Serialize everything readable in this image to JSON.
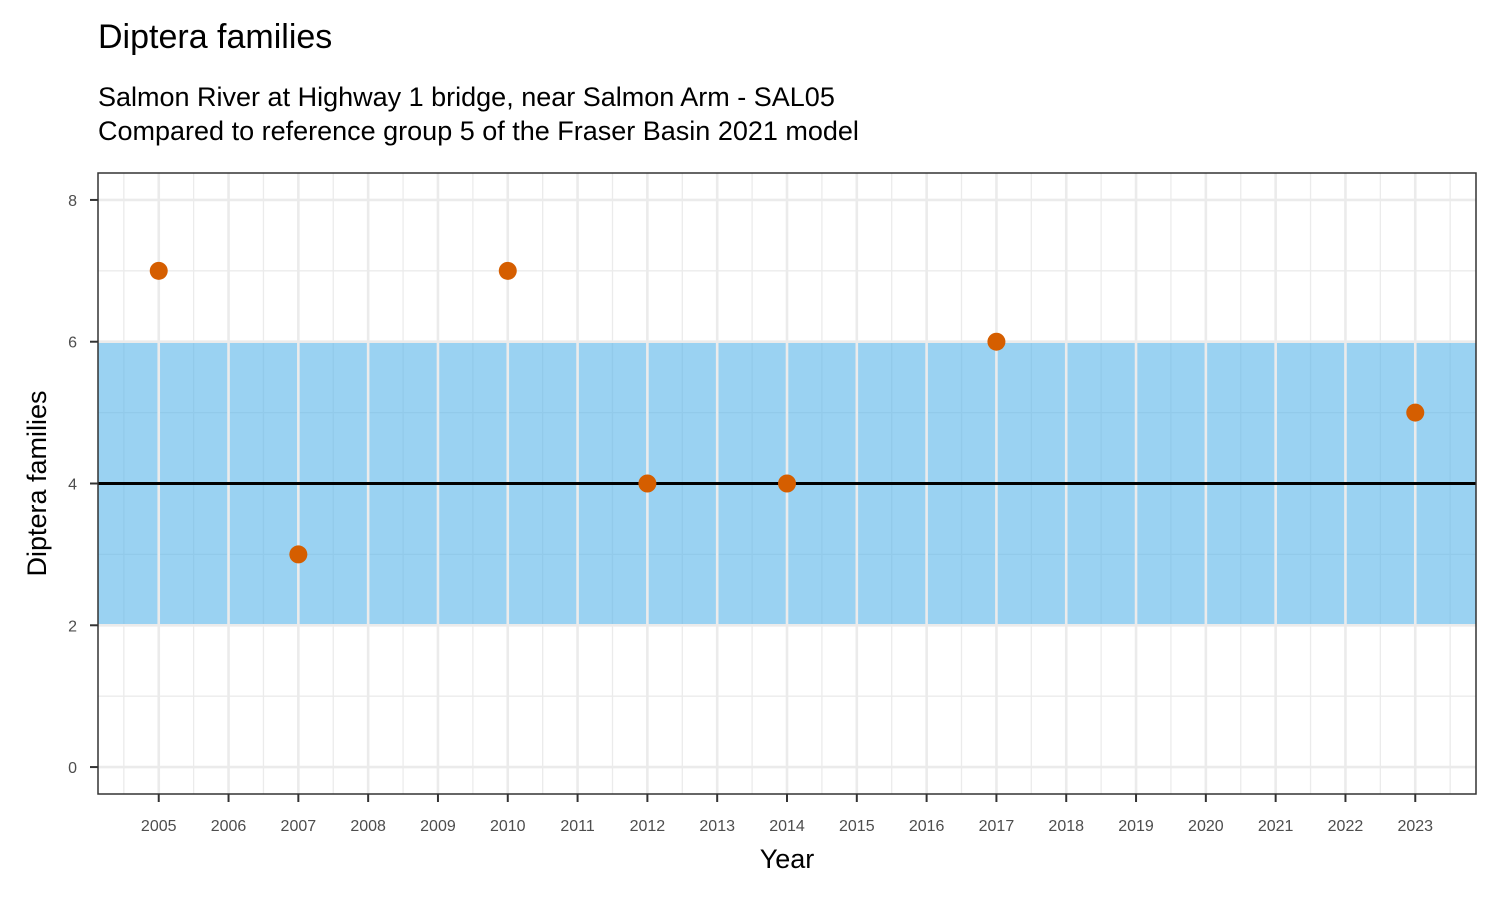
{
  "chart_data": {
    "type": "scatter",
    "title": "Diptera families",
    "subtitle_lines": [
      "Salmon River at Highway 1 bridge, near Salmon Arm - SAL05",
      "Compared to reference group 5 of the Fraser Basin 2021 model"
    ],
    "xlabel": "Year",
    "ylabel": "Diptera families",
    "x_ticks": [
      2005,
      2006,
      2007,
      2008,
      2009,
      2010,
      2011,
      2012,
      2013,
      2014,
      2015,
      2016,
      2017,
      2018,
      2019,
      2020,
      2021,
      2022,
      2023
    ],
    "y_ticks": [
      0,
      2,
      4,
      6,
      8
    ],
    "xlim": [
      2004.13,
      2023.87
    ],
    "ylim": [
      -0.38,
      8.38
    ],
    "points": [
      {
        "x": 2005,
        "y": 7
      },
      {
        "x": 2007,
        "y": 3
      },
      {
        "x": 2010,
        "y": 7
      },
      {
        "x": 2012,
        "y": 4
      },
      {
        "x": 2014,
        "y": 4
      },
      {
        "x": 2017,
        "y": 6
      },
      {
        "x": 2023,
        "y": 5
      }
    ],
    "reference_band": {
      "ymin": 2,
      "ymax": 6
    },
    "reference_line": {
      "y": 4
    },
    "grid": true,
    "legend": "none",
    "colors": {
      "point": "#d55e00",
      "band": "#56b4e9",
      "reference_line": "#000000",
      "grid": "#ebebeb",
      "panel_border": "#333333"
    }
  }
}
